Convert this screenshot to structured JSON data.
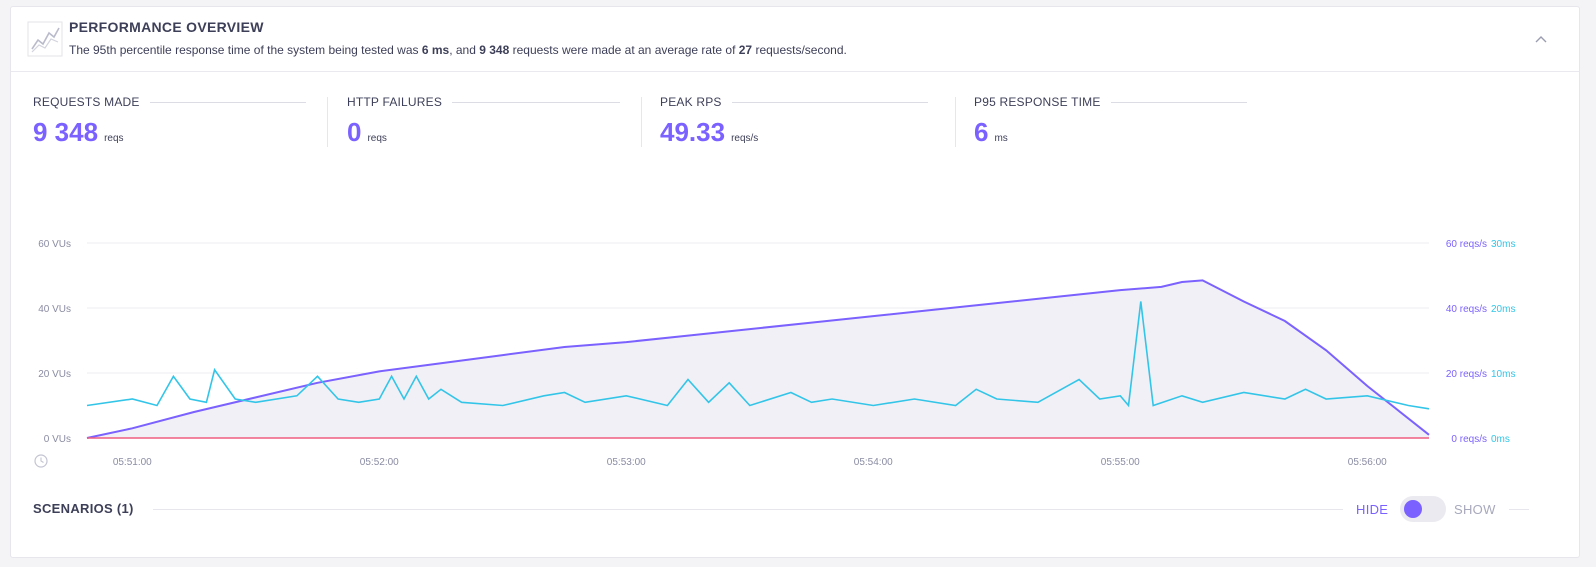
{
  "header": {
    "title": "PERFORMANCE OVERVIEW",
    "desc_prefix": "The 95th percentile response time of the system being tested was ",
    "desc_p95": "6 ms",
    "desc_mid": ", and ",
    "desc_requests": "9 348",
    "desc_mid2": " requests were made at an average rate of ",
    "desc_rate": "27",
    "desc_suffix": " requests/second.",
    "icon": "chart-line-icon",
    "collapse_icon": "chevron-up-icon"
  },
  "stats": [
    {
      "label": "REQUESTS MADE",
      "value": "9 348",
      "unit": "reqs"
    },
    {
      "label": "HTTP FAILURES",
      "value": "0",
      "unit": "reqs"
    },
    {
      "label": "PEAK RPS",
      "value": "49.33",
      "unit": "reqs/s"
    },
    {
      "label": "P95 RESPONSE TIME",
      "value": "6",
      "unit": "ms"
    }
  ],
  "colors": {
    "vus": "#7b61ff",
    "response_time": "#33c5e8",
    "failures": "#ef5d80",
    "grid": "#ececf2",
    "axis_text": "#8a8ca3"
  },
  "chart_data": {
    "type": "line",
    "x_ticks": [
      "05:51:00",
      "05:52:00",
      "05:53:00",
      "05:54:00",
      "05:55:00",
      "05:56:00"
    ],
    "x_range": [
      "05:50:49",
      "05:56:15"
    ],
    "left_axis": {
      "ticks": [
        "0 VUs",
        "20 VUs",
        "40 VUs",
        "60 VUs"
      ],
      "range": [
        0,
        60
      ]
    },
    "right_axis_rps": {
      "ticks": [
        "0 reqs/s",
        "20 reqs/s",
        "40 reqs/s",
        "60 reqs/s"
      ],
      "range": [
        0,
        60
      ]
    },
    "right_axis_ms": {
      "ticks": [
        "0ms",
        "10ms",
        "20ms",
        "30ms"
      ],
      "range": [
        0,
        30
      ]
    },
    "grid": true,
    "series": [
      {
        "key": "vus",
        "x": [
          "05:50:49",
          "05:51:00",
          "05:51:15",
          "05:51:30",
          "05:51:45",
          "05:52:00",
          "05:52:15",
          "05:52:30",
          "05:52:45",
          "05:53:00",
          "05:53:15",
          "05:53:30",
          "05:53:45",
          "05:54:00",
          "05:54:15",
          "05:54:30",
          "05:54:45",
          "05:55:00",
          "05:55:10",
          "05:55:15",
          "05:55:20",
          "05:55:30",
          "05:55:40",
          "05:55:50",
          "05:56:00",
          "05:56:15"
        ],
        "values": [
          0,
          3,
          8,
          12.5,
          17,
          20.5,
          23,
          25.5,
          28,
          29.5,
          31.5,
          33.5,
          35.5,
          37.5,
          39.5,
          41.5,
          43.5,
          45.5,
          46.5,
          48,
          48.5,
          42,
          36,
          27,
          16,
          1
        ]
      },
      {
        "key": "response_time",
        "x": [
          "05:50:49",
          "05:51:00",
          "05:51:06",
          "05:51:10",
          "05:51:14",
          "05:51:18",
          "05:51:20",
          "05:51:25",
          "05:51:30",
          "05:51:40",
          "05:51:45",
          "05:51:50",
          "05:51:55",
          "05:52:00",
          "05:52:03",
          "05:52:06",
          "05:52:09",
          "05:52:12",
          "05:52:15",
          "05:52:20",
          "05:52:30",
          "05:52:40",
          "05:52:45",
          "05:52:50",
          "05:53:00",
          "05:53:10",
          "05:53:15",
          "05:53:20",
          "05:53:25",
          "05:53:30",
          "05:53:40",
          "05:53:45",
          "05:53:50",
          "05:54:00",
          "05:54:10",
          "05:54:20",
          "05:54:25",
          "05:54:30",
          "05:54:40",
          "05:54:50",
          "05:54:55",
          "05:55:00",
          "05:55:02",
          "05:55:05",
          "05:55:08",
          "05:55:15",
          "05:55:20",
          "05:55:30",
          "05:55:40",
          "05:55:45",
          "05:55:50",
          "05:56:00",
          "05:56:10",
          "05:56:15"
        ],
        "values": [
          5,
          6,
          5,
          9.5,
          6,
          5.5,
          10.5,
          6,
          5.5,
          6.5,
          9.5,
          6,
          5.5,
          6,
          9.5,
          6,
          9.5,
          6,
          7.5,
          5.5,
          5,
          6.5,
          7,
          5.5,
          6.5,
          5,
          9,
          5.5,
          8.5,
          5,
          7,
          5.5,
          6,
          5,
          6,
          5,
          7.5,
          6,
          5.5,
          9,
          6,
          6.5,
          5,
          21,
          5,
          6.5,
          5.5,
          7,
          6,
          7.5,
          6,
          6.5,
          5,
          4.5
        ]
      },
      {
        "key": "failures",
        "x": [
          "05:50:49",
          "05:56:15"
        ],
        "values": [
          0,
          0
        ]
      }
    ]
  },
  "scenarios": {
    "title": "SCENARIOS (1)",
    "hide_label": "HIDE",
    "show_label": "SHOW",
    "toggle_state": "hide"
  }
}
